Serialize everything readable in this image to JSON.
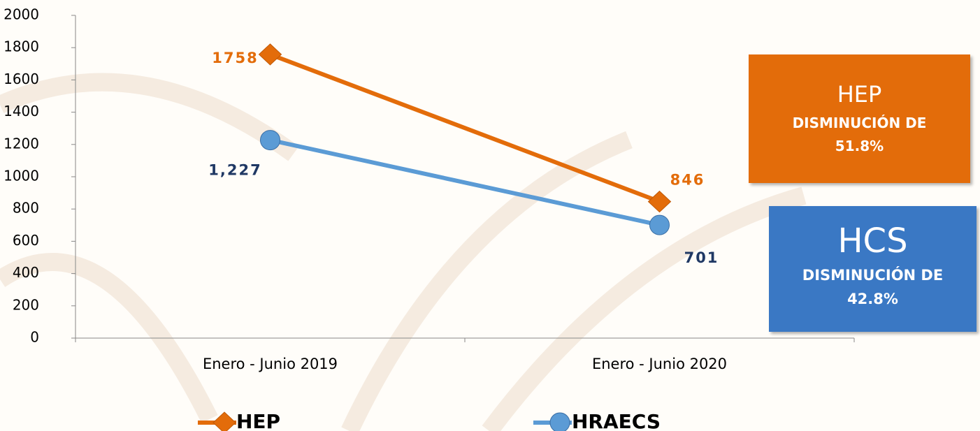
{
  "chart_data": {
    "type": "line",
    "categories": [
      "Enero - Junio 2019",
      "Enero - Junio 2020"
    ],
    "series": [
      {
        "name": "HEP",
        "color": "#e36c0a",
        "marker": "diamond",
        "label_color": "#e36c0a",
        "values": [
          1758,
          846
        ]
      },
      {
        "name": "HRAECS",
        "color": "#5b9bd5",
        "marker": "circle",
        "label_color": "#1f3864",
        "values": [
          1227,
          701
        ],
        "value_labels": [
          "1,227",
          "701"
        ]
      }
    ],
    "ylim": [
      0,
      2000
    ],
    "yticks": [
      0,
      200,
      400,
      600,
      800,
      1000,
      1200,
      1400,
      1600,
      1800,
      2000
    ],
    "legend": "bottom",
    "annotations": [
      {
        "title": "HEP",
        "text": "DISMINUCIÓN DE 51.8%",
        "color": "#e36c0a"
      },
      {
        "title": "HCS",
        "text": "DISMINUCIÓN DE 42.8%",
        "color": "#3a78c4"
      }
    ]
  }
}
